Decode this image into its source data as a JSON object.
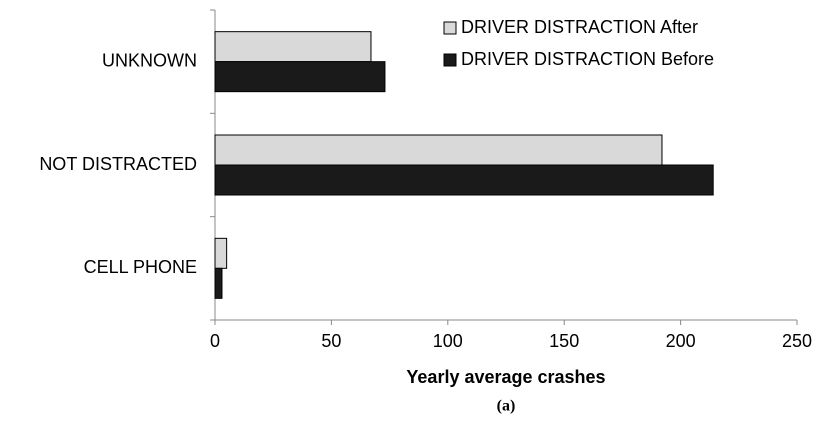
{
  "chart_data": {
    "type": "hbar",
    "xlabel": "Yearly average crashes",
    "caption": "(a)",
    "categories": [
      "UNKNOWN",
      "NOT DISTRACTED",
      "CELL PHONE"
    ],
    "series": [
      {
        "name": "DRIVER DISTRACTION After",
        "color": "#d9d9d9",
        "values": [
          67,
          192,
          5
        ]
      },
      {
        "name": "DRIVER DISTRACTION Before",
        "color": "#1a1a1a",
        "values": [
          73,
          214,
          3
        ]
      }
    ],
    "xlim": [
      0,
      250
    ],
    "xticks": [
      0,
      50,
      100,
      150,
      200,
      250
    ],
    "grid": false,
    "legend": "top-right"
  }
}
